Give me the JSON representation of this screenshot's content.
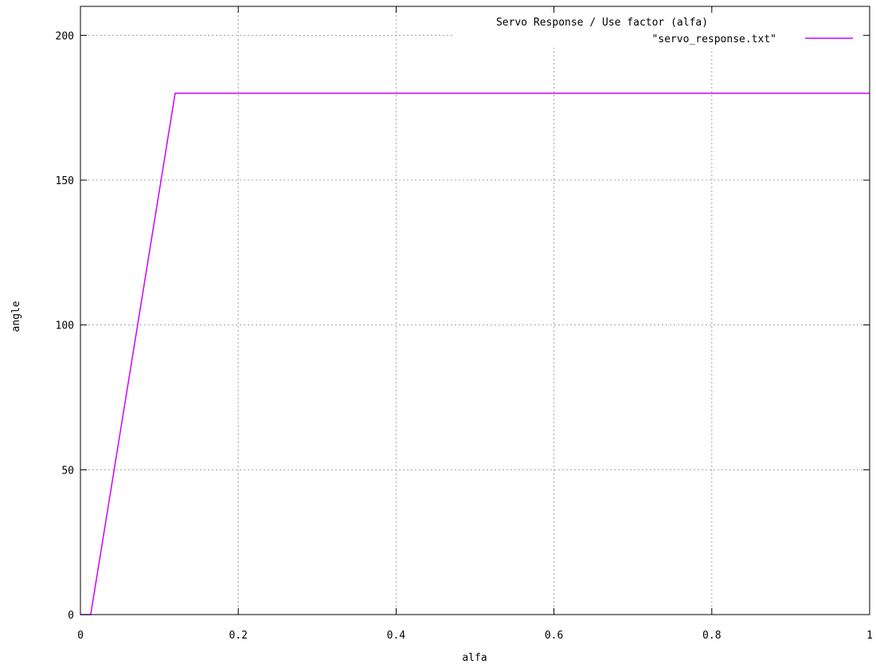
{
  "chart_data": {
    "type": "line",
    "title": "Servo Response / Use factor (alfa)",
    "xlabel": "alfa",
    "ylabel": "angle",
    "xlim": [
      0,
      1
    ],
    "ylim": [
      0,
      210
    ],
    "x_ticks": [
      {
        "value": 0,
        "label": "0"
      },
      {
        "value": 0.2,
        "label": "0.2"
      },
      {
        "value": 0.4,
        "label": "0.4"
      },
      {
        "value": 0.6,
        "label": "0.6"
      },
      {
        "value": 0.8,
        "label": "0.8"
      },
      {
        "value": 1,
        "label": "1"
      }
    ],
    "y_ticks": [
      {
        "value": 0,
        "label": "0"
      },
      {
        "value": 50,
        "label": "50"
      },
      {
        "value": 100,
        "label": "100"
      },
      {
        "value": 150,
        "label": "150"
      },
      {
        "value": 200,
        "label": "200"
      }
    ],
    "grid": true,
    "legend_position": "top-right",
    "series": [
      {
        "name": "\"servo_response.txt\"",
        "color": "#cc00ff",
        "x": [
          0,
          0.013,
          0.12,
          1
        ],
        "y": [
          0,
          0,
          180,
          180
        ]
      }
    ]
  }
}
